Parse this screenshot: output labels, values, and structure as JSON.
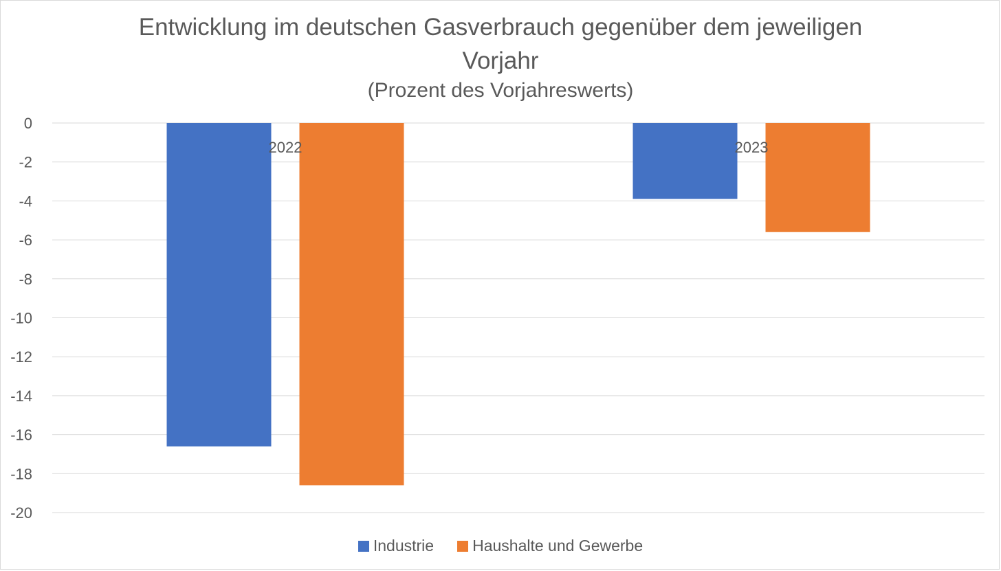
{
  "chart_data": {
    "type": "bar",
    "title": "Entwicklung im deutschen Gasverbrauch gegenüber dem jeweiligen",
    "title_line2": "Vorjahr",
    "subtitle": "(Prozent des Vorjahreswerts)",
    "categories": [
      "2022",
      "2023"
    ],
    "series": [
      {
        "name": "Industrie",
        "color": "#4472c4",
        "values": [
          -16.6,
          -3.9
        ]
      },
      {
        "name": "Haushalte und Gewerbe",
        "color": "#ed7d31",
        "values": [
          -18.6,
          -5.6
        ]
      }
    ],
    "yticks": [
      0,
      -2,
      -4,
      -6,
      -8,
      -10,
      -12,
      -14,
      -16,
      -18,
      -20
    ],
    "ylim": [
      -20,
      0
    ],
    "xlabel": "",
    "ylabel": "",
    "grid": true,
    "legend_position": "bottom"
  }
}
